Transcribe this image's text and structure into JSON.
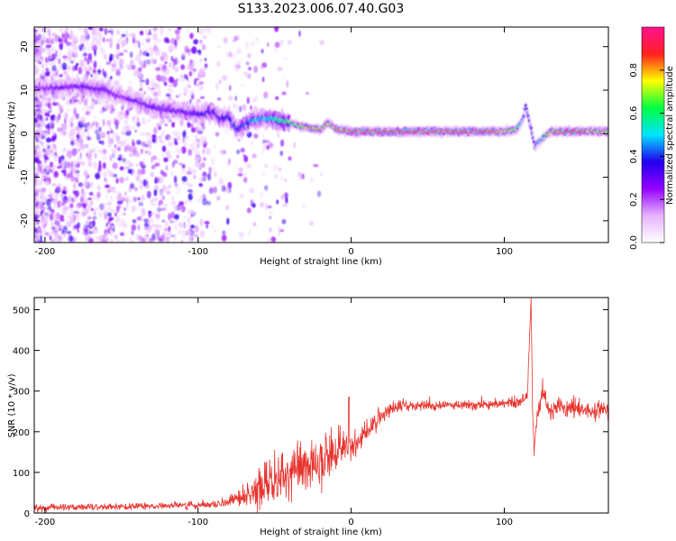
{
  "chart_data": [
    {
      "type": "heatmap",
      "title": "S133.2023.006.07.40.G03",
      "xlabel": "Height of straight line (km)",
      "ylabel": "Frequency (Hz)",
      "xlim": [
        -207,
        168
      ],
      "ylim": [
        -25,
        24.5
      ],
      "xticks": [
        -200,
        -100,
        0,
        100
      ],
      "yticks": [
        -20,
        -10,
        0,
        10,
        20
      ],
      "colorbar": {
        "label": "Normalized spectral amplitude",
        "range": [
          0,
          1
        ],
        "ticks": [
          0.0,
          0.2,
          0.4,
          0.6,
          0.8
        ],
        "colormap": [
          "#ffffff",
          "#e6b3ff",
          "#9400ff",
          "#2200ee",
          "#00e5ff",
          "#00ff40",
          "#ffff00",
          "#ff2020",
          "#ff1090"
        ]
      },
      "ridge": {
        "x": [
          -207,
          -190,
          -180,
          -160,
          -150,
          -140,
          -130,
          -120,
          -110,
          -100,
          -90,
          -85,
          -80,
          -75,
          -70,
          -65,
          -60,
          -50,
          -40,
          -30,
          -20,
          -15,
          -10,
          0,
          20,
          40,
          60,
          80,
          100,
          108,
          112,
          114,
          117,
          120,
          125,
          130,
          140,
          150,
          160,
          168
        ],
        "freq": [
          10.5,
          10.5,
          11,
          10,
          8.5,
          7.5,
          6,
          5.5,
          5,
          4.5,
          5,
          3.5,
          4,
          1,
          2,
          3,
          3.5,
          3.5,
          2.5,
          1.5,
          1,
          2.5,
          1,
          0.5,
          0.5,
          0.5,
          0.5,
          0.5,
          0.5,
          1,
          3,
          6.5,
          2,
          -3,
          -1,
          0.5,
          0.5,
          0.5,
          0.5,
          0.5
        ],
        "amplitude": [
          0.25,
          0.28,
          0.3,
          0.3,
          0.25,
          0.3,
          0.3,
          0.3,
          0.3,
          0.35,
          0.35,
          0.35,
          0.4,
          0.4,
          0.4,
          0.45,
          0.5,
          0.55,
          0.65,
          0.75,
          0.8,
          0.75,
          0.85,
          0.9,
          0.9,
          0.9,
          0.9,
          0.9,
          0.85,
          0.7,
          0.5,
          0.4,
          0.45,
          0.4,
          0.6,
          0.8,
          0.85,
          0.85,
          0.8,
          0.8
        ]
      }
    },
    {
      "type": "line",
      "xlabel": "Height of straight line (km)",
      "ylabel": "SNR (10 * v/v)",
      "xlim": [
        -207,
        168
      ],
      "ylim": [
        0,
        530
      ],
      "xticks": [
        -200,
        -100,
        0,
        100
      ],
      "yticks": [
        0,
        100,
        200,
        300,
        400,
        500
      ],
      "series": [
        {
          "color": "#e8342f",
          "x": [
            -207,
            -180,
            -150,
            -120,
            -100,
            -90,
            -80,
            -70,
            -65,
            -60,
            -55,
            -50,
            -45,
            -40,
            -35,
            -30,
            -25,
            -20,
            -15,
            -10,
            -5,
            -1,
            0,
            5,
            10,
            20,
            30,
            40,
            60,
            80,
            100,
            110,
            115,
            117.5,
            118.5,
            119.5,
            121,
            125,
            130,
            140,
            150,
            160,
            168
          ],
          "y": [
            12,
            15,
            16,
            18,
            20,
            22,
            25,
            40,
            45,
            60,
            70,
            80,
            90,
            95,
            100,
            110,
            115,
            120,
            135,
            150,
            170,
            180,
            160,
            175,
            200,
            240,
            260,
            265,
            265,
            265,
            270,
            275,
            280,
            530,
            250,
            150,
            220,
            300,
            250,
            260,
            255,
            255,
            255
          ],
          "noise": [
            8,
            8,
            8,
            8,
            8,
            8,
            14,
            25,
            35,
            40,
            50,
            55,
            60,
            60,
            60,
            60,
            55,
            50,
            50,
            45,
            40,
            40,
            30,
            30,
            25,
            18,
            15,
            12,
            10,
            10,
            12,
            15,
            15,
            0,
            0,
            10,
            20,
            25,
            25,
            22,
            20,
            20,
            20
          ]
        }
      ]
    }
  ]
}
